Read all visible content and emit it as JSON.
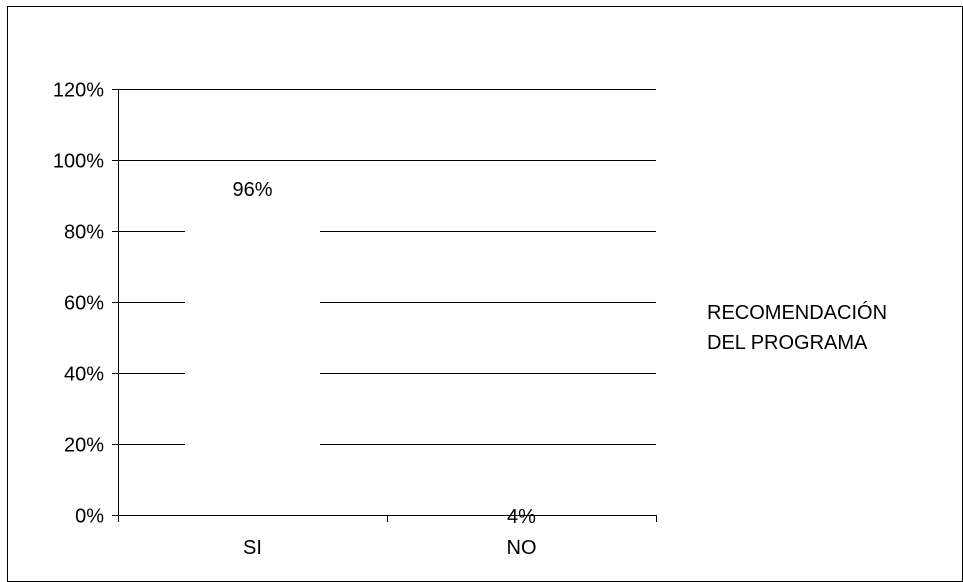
{
  "chart_data": {
    "type": "bar",
    "categories": [
      "SI",
      "NO"
    ],
    "series": [
      {
        "name": "RECOMENDACIÓN DEL PROGRAMA",
        "values": [
          0.96,
          0.04
        ]
      }
    ],
    "data_labels": [
      "96%",
      "4%"
    ],
    "legend": {
      "lines": [
        "RECOMENDACIÓN",
        "DEL PROGRAMA"
      ],
      "placement": "right"
    },
    "y_ticks": [
      "0%",
      "20%",
      "40%",
      "60%",
      "80%",
      "100%",
      "120%"
    ],
    "ylim": [
      0,
      1.2
    ],
    "grid": true,
    "colors": {
      "bar_fill": "#ffffff",
      "gridline": "#000000",
      "axis": "#000000",
      "text": "#000000",
      "frame": "#000000"
    }
  }
}
